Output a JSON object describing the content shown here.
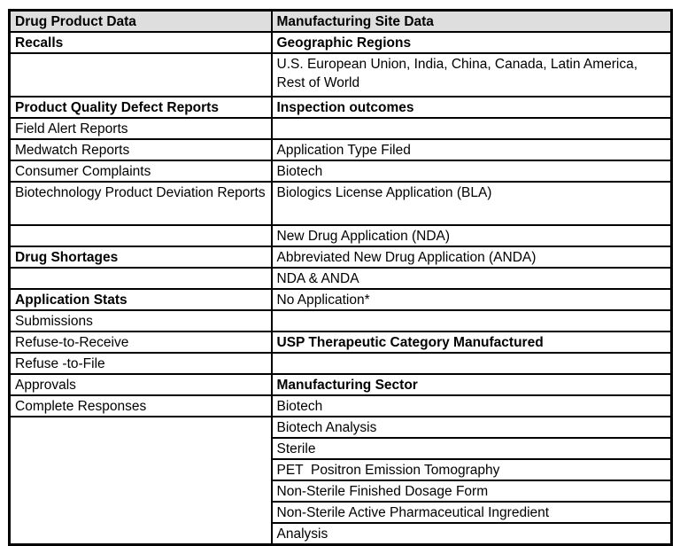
{
  "table": {
    "columns": [
      {
        "header": "Drug Product Data"
      },
      {
        "header": "Manufacturing Site Data"
      }
    ],
    "rows": [
      {
        "left": "Recalls",
        "right": "Geographic Regions"
      },
      {
        "left": "",
        "right": "U.S. European Union, India, China, Canada, Latin America, Rest of World"
      },
      {
        "left": "Product Quality Defect Reports",
        "right": "Inspection outcomes"
      },
      {
        "left": "Field Alert Reports",
        "right": ""
      },
      {
        "left": "Medwatch Reports",
        "right": "Application Type Filed"
      },
      {
        "left": "Consumer Complaints",
        "right": "Biotech"
      },
      {
        "left": "Biotechnology Product Deviation Reports",
        "right": "Biologics License Application (BLA)"
      },
      {
        "left": "",
        "right": "New Drug Application (NDA)"
      },
      {
        "left": "Drug Shortages",
        "right": "Abbreviated New Drug Application (ANDA)"
      },
      {
        "left": "",
        "right": "NDA & ANDA"
      },
      {
        "left": "Application Stats",
        "right": "No Application*"
      },
      {
        "left": "Submissions",
        "right": ""
      },
      {
        "left": "Refuse-to-Receive",
        "right": "USP Therapeutic Category Manufactured"
      },
      {
        "left": "Refuse -to-File",
        "right": ""
      },
      {
        "left": "Approvals",
        "right": "Manufacturing Sector"
      },
      {
        "left": "Complete Responses",
        "right": "Biotech"
      },
      {
        "left": "",
        "right": "Biotech Analysis"
      },
      {
        "right": "Sterile"
      },
      {
        "right": "PET  Positron Emission Tomography"
      },
      {
        "right": "Non-Sterile Finished Dosage Form"
      },
      {
        "right": "Non-Sterile Active Pharmaceutical Ingredient"
      },
      {
        "right": "Analysis"
      }
    ]
  },
  "colors": {
    "border": "#000000",
    "header_bg": "#dedede",
    "text": "#000000",
    "page_bg": "#ffffff"
  }
}
